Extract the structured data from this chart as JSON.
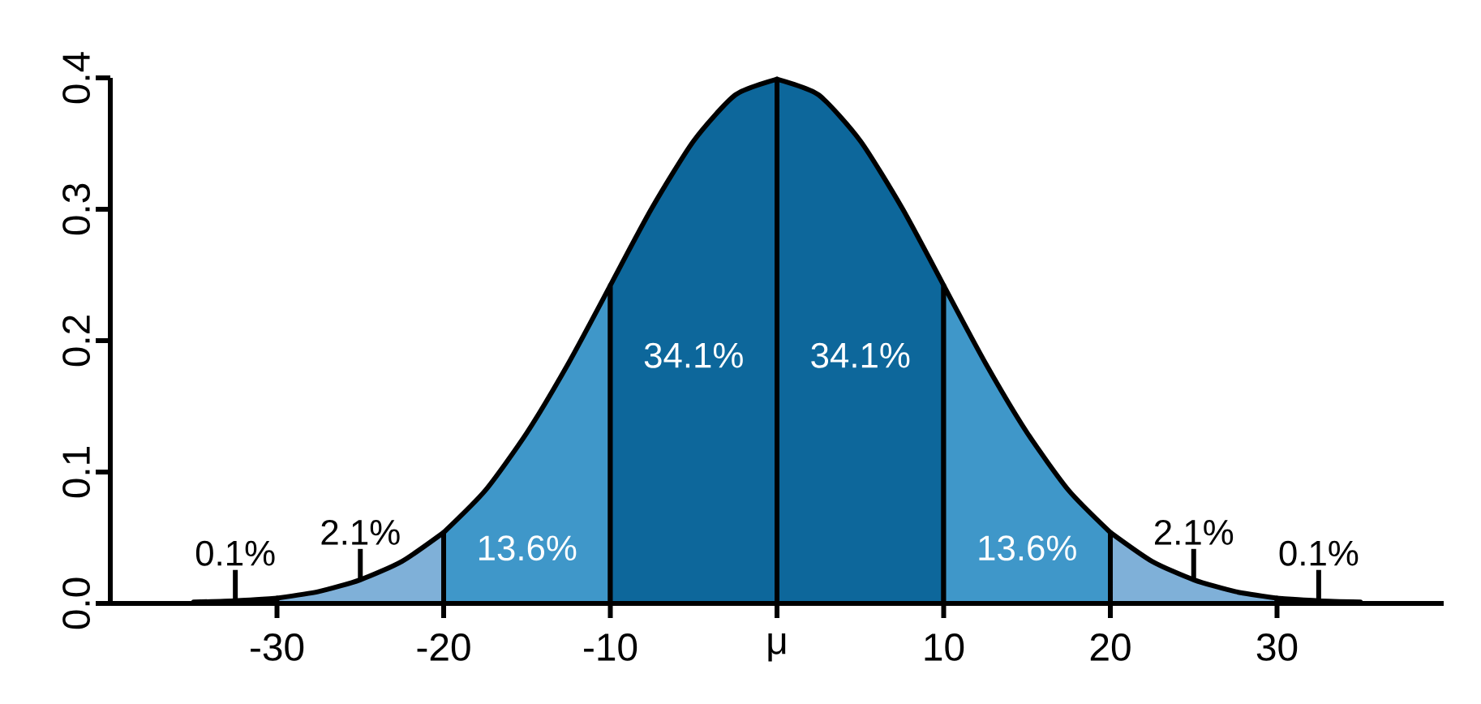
{
  "chart_data": {
    "type": "area",
    "series": [
      {
        "color": "#7fb0d8",
        "x": [
          -35,
          -32.5,
          -30
        ],
        "values": [
          0.001,
          0.002,
          0.004
        ]
      },
      {
        "color": "#7fb0d8",
        "x": [
          -30,
          -27.5,
          -25,
          -22.5,
          -20
        ],
        "values": [
          0.004,
          0.009,
          0.018,
          0.032,
          0.054
        ]
      },
      {
        "color": "#3f97c9",
        "x": [
          -20,
          -17.5,
          -15,
          -12.5,
          -10
        ],
        "values": [
          0.054,
          0.086,
          0.13,
          0.183,
          0.242
        ]
      },
      {
        "color": "#0d679b",
        "x": [
          -10,
          -7.5,
          -5,
          -2.5,
          0
        ],
        "values": [
          0.242,
          0.301,
          0.352,
          0.387,
          0.399
        ]
      },
      {
        "color": "#0d679b",
        "x": [
          0,
          2.5,
          5,
          7.5,
          10
        ],
        "values": [
          0.399,
          0.387,
          0.352,
          0.301,
          0.242
        ]
      },
      {
        "color": "#3f97c9",
        "x": [
          10,
          12.5,
          15,
          17.5,
          20
        ],
        "values": [
          0.242,
          0.183,
          0.13,
          0.086,
          0.054
        ]
      },
      {
        "color": "#7fb0d8",
        "x": [
          20,
          22.5,
          25,
          27.5,
          30
        ],
        "values": [
          0.054,
          0.032,
          0.018,
          0.009,
          0.004
        ]
      },
      {
        "color": "#7fb0d8",
        "x": [
          30,
          32.5,
          35
        ],
        "values": [
          0.004,
          0.002,
          0.001
        ]
      }
    ],
    "xlim": [
      -40,
      40
    ],
    "ylim": [
      0,
      0.4
    ],
    "xticks": [
      -30,
      -20,
      -10,
      {
        "value": 0,
        "label": "μ"
      },
      10,
      20,
      30
    ],
    "yticks": [
      {
        "value": 0,
        "label": "0.0"
      },
      0.1,
      0.2,
      0.3,
      0.4
    ],
    "grid": false,
    "annotations": [
      "0.1%",
      "2.1%",
      "13.6%",
      "34.1%",
      "34.1%",
      "13.6%",
      "2.1%",
      "0.1%"
    ]
  }
}
